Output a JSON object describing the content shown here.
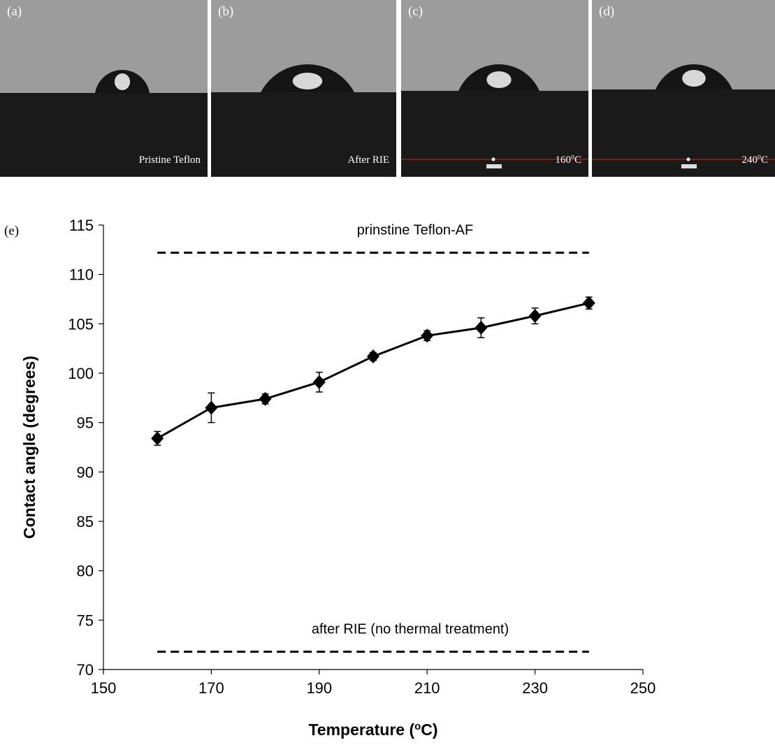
{
  "panels": [
    {
      "label": "(a)",
      "caption": "Pristine Teflon"
    },
    {
      "label": "(b)",
      "caption": "After RIE"
    },
    {
      "label": "(c)",
      "caption": "160",
      "caption_sup": "o",
      "caption_end": "C"
    },
    {
      "label": "(d)",
      "caption": "240",
      "caption_sup": "o",
      "caption_end": "C"
    }
  ],
  "chart_data": {
    "type": "line",
    "panel_label": "(e)",
    "x_title": "Temperature (",
    "x_title_sup": "o",
    "x_title_end": "C)",
    "y_title": "Contact angle (degrees)",
    "x": [
      160,
      170,
      180,
      190,
      200,
      210,
      220,
      230,
      240
    ],
    "values": [
      93.4,
      96.5,
      97.4,
      99.1,
      101.7,
      103.8,
      104.6,
      105.8,
      107.1
    ],
    "errors": [
      0.7,
      1.5,
      0.5,
      1.0,
      0.4,
      0.5,
      1.0,
      0.8,
      0.6
    ],
    "color": "#000000",
    "xlim": [
      150,
      250
    ],
    "xticks": [
      150,
      170,
      190,
      210,
      230,
      250
    ],
    "ylim": [
      70,
      115
    ],
    "yticks": [
      70,
      75,
      80,
      85,
      90,
      95,
      100,
      105,
      110,
      115
    ],
    "reference_lines": [
      {
        "value": 112.2,
        "x_range": [
          160,
          240
        ],
        "label": "prinstine Teflon-AF"
      },
      {
        "value": 71.8,
        "x_range": [
          160,
          240
        ],
        "label": "after RIE (no thermal treatment)"
      }
    ]
  }
}
